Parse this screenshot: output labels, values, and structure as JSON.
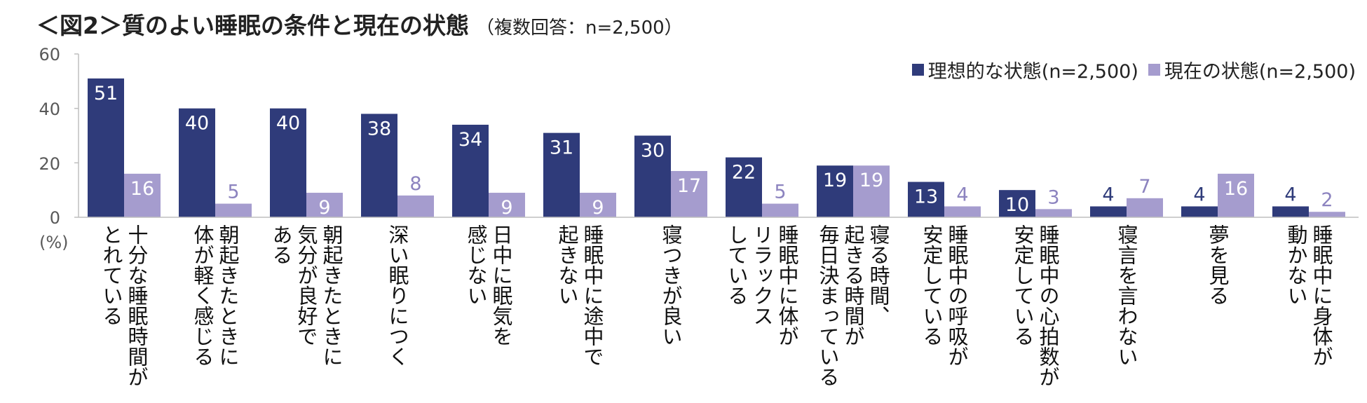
{
  "title": "＜図2＞質のよい睡眠の条件と現在の状態",
  "subtitle": "（複数回答：n=2,500）",
  "chart_data": {
    "type": "bar",
    "title": "＜図2＞質のよい睡眠の条件と現在の状態",
    "subtitle": "（複数回答：n=2,500）",
    "ylabel": "(%)",
    "ylim": [
      0,
      60
    ],
    "yticks": [
      0,
      20,
      40,
      60
    ],
    "ytick_labels": [
      "0",
      "20",
      "40",
      "60"
    ],
    "legend_position": "top-right",
    "categories": [
      "十分な睡眠時間が\nとれている",
      "朝起きたときに\n体が軽く感じる",
      "朝起きたときに\n気分が良好で\nある",
      "深い眠りにつく",
      "日中に眠気を\n感じない",
      "睡眠中に途中で\n起きない",
      "寝つきが良い",
      "睡眠中に体が\nリラックス\nしている",
      "寝る時間、\n起きる時間が\n毎日決まっている",
      "睡眠中の呼吸が\n安定している",
      "睡眠中の心拍数が\n安定している",
      "寝言を言わない",
      "夢を見る",
      "睡眠中に身体が\n動かない"
    ],
    "series": [
      {
        "name": "理想的な状態(n=2,500)",
        "color": "#2f3b7a",
        "values": [
          51,
          40,
          40,
          38,
          34,
          31,
          30,
          22,
          19,
          13,
          10,
          4,
          4,
          4
        ]
      },
      {
        "name": "現在の状態(n=2,500)",
        "color": "#a59cce",
        "values": [
          16,
          5,
          9,
          8,
          9,
          9,
          17,
          5,
          19,
          4,
          3,
          7,
          16,
          2
        ]
      }
    ]
  }
}
